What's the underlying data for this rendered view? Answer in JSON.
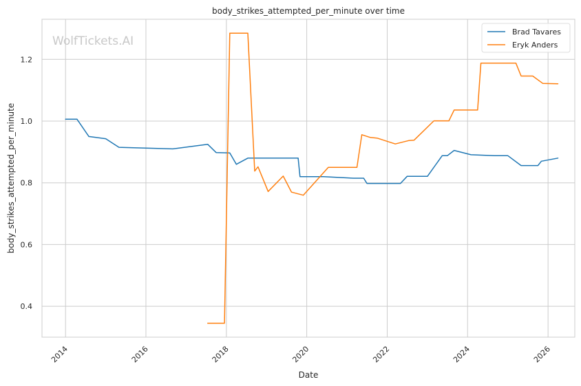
{
  "chart_data": {
    "type": "line",
    "title": "body_strikes_attempted_per_minute over time",
    "xlabel": "Date",
    "ylabel": "body_strikes_attempted_per_minute",
    "watermark": "WolfTickets.AI",
    "x_type": "date",
    "xlim": [
      "2013-06-01",
      "2026-09-01"
    ],
    "ylim": [
      0.3,
      1.33
    ],
    "x_ticks": [
      "2014",
      "2016",
      "2018",
      "2020",
      "2022",
      "2024",
      "2026"
    ],
    "y_ticks": [
      "0.4",
      "0.6",
      "0.8",
      "1.0",
      "1.2"
    ],
    "grid": true,
    "legend": "top-right",
    "series": [
      {
        "name": "Brad Tavares",
        "color": "#1f77b4",
        "points": [
          [
            "2014-01-01",
            1.006
          ],
          [
            "2014-04-15",
            1.006
          ],
          [
            "2014-08-01",
            0.95
          ],
          [
            "2015-01-01",
            0.943
          ],
          [
            "2015-05-01",
            0.915
          ],
          [
            "2016-09-01",
            0.91
          ],
          [
            "2017-07-15",
            0.925
          ],
          [
            "2017-10-01",
            0.898
          ],
          [
            "2018-02-01",
            0.897
          ],
          [
            "2018-04-01",
            0.86
          ],
          [
            "2018-07-15",
            0.88
          ],
          [
            "2019-10-15",
            0.88
          ],
          [
            "2019-11-01",
            0.82
          ],
          [
            "2020-06-01",
            0.82
          ],
          [
            "2021-03-01",
            0.815
          ],
          [
            "2021-06-01",
            0.815
          ],
          [
            "2021-07-01",
            0.798
          ],
          [
            "2022-05-01",
            0.798
          ],
          [
            "2022-07-01",
            0.821
          ],
          [
            "2023-01-01",
            0.821
          ],
          [
            "2023-05-15",
            0.888
          ],
          [
            "2023-07-01",
            0.888
          ],
          [
            "2023-09-01",
            0.905
          ],
          [
            "2024-02-01",
            0.891
          ],
          [
            "2024-09-01",
            0.888
          ],
          [
            "2025-01-01",
            0.888
          ],
          [
            "2025-05-01",
            0.856
          ],
          [
            "2025-10-01",
            0.856
          ],
          [
            "2025-11-01",
            0.87
          ],
          [
            "2026-04-01",
            0.88
          ]
        ]
      },
      {
        "name": "Eryk Anders",
        "color": "#ff7f0e",
        "points": [
          [
            "2017-07-15",
            0.345
          ],
          [
            "2017-12-15",
            0.345
          ],
          [
            "2018-02-01",
            1.285
          ],
          [
            "2018-07-15",
            1.285
          ],
          [
            "2018-09-15",
            0.838
          ],
          [
            "2018-10-15",
            0.852
          ],
          [
            "2019-01-15",
            0.772
          ],
          [
            "2019-06-01",
            0.822
          ],
          [
            "2019-08-15",
            0.77
          ],
          [
            "2019-12-01",
            0.76
          ],
          [
            "2020-07-15",
            0.85
          ],
          [
            "2021-04-01",
            0.85
          ],
          [
            "2021-05-15",
            0.956
          ],
          [
            "2021-08-01",
            0.947
          ],
          [
            "2021-10-01",
            0.945
          ],
          [
            "2022-03-15",
            0.926
          ],
          [
            "2022-07-15",
            0.937
          ],
          [
            "2022-09-01",
            0.938
          ],
          [
            "2023-03-01",
            1.001
          ],
          [
            "2023-07-15",
            1.001
          ],
          [
            "2023-09-01",
            1.036
          ],
          [
            "2024-04-01",
            1.036
          ],
          [
            "2024-05-01",
            1.188
          ],
          [
            "2025-03-15",
            1.188
          ],
          [
            "2025-05-01",
            1.146
          ],
          [
            "2025-08-15",
            1.146
          ],
          [
            "2025-11-15",
            1.122
          ],
          [
            "2026-04-01",
            1.121
          ]
        ]
      }
    ]
  }
}
